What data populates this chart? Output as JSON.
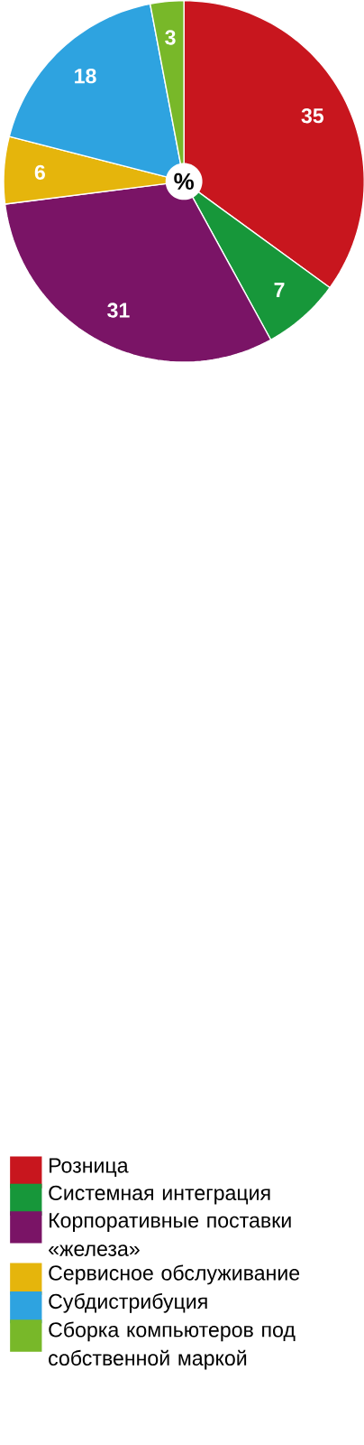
{
  "chart_data": {
    "type": "pie",
    "categories": [
      "Розница",
      "Системная интеграция",
      "Корпоративные поставки «железа»",
      "Сервисное обслуживание",
      "Субдистрибуция",
      "Сборка компьютеров под собственной маркой"
    ],
    "values": [
      35,
      7,
      31,
      6,
      18,
      3
    ],
    "colors": [
      "#c8161e",
      "#17973a",
      "#7a1466",
      "#e5b50c",
      "#2ea3e0",
      "#78b829"
    ],
    "data_labels": true,
    "legend": "bottom",
    "annotations": [
      "%"
    ]
  }
}
